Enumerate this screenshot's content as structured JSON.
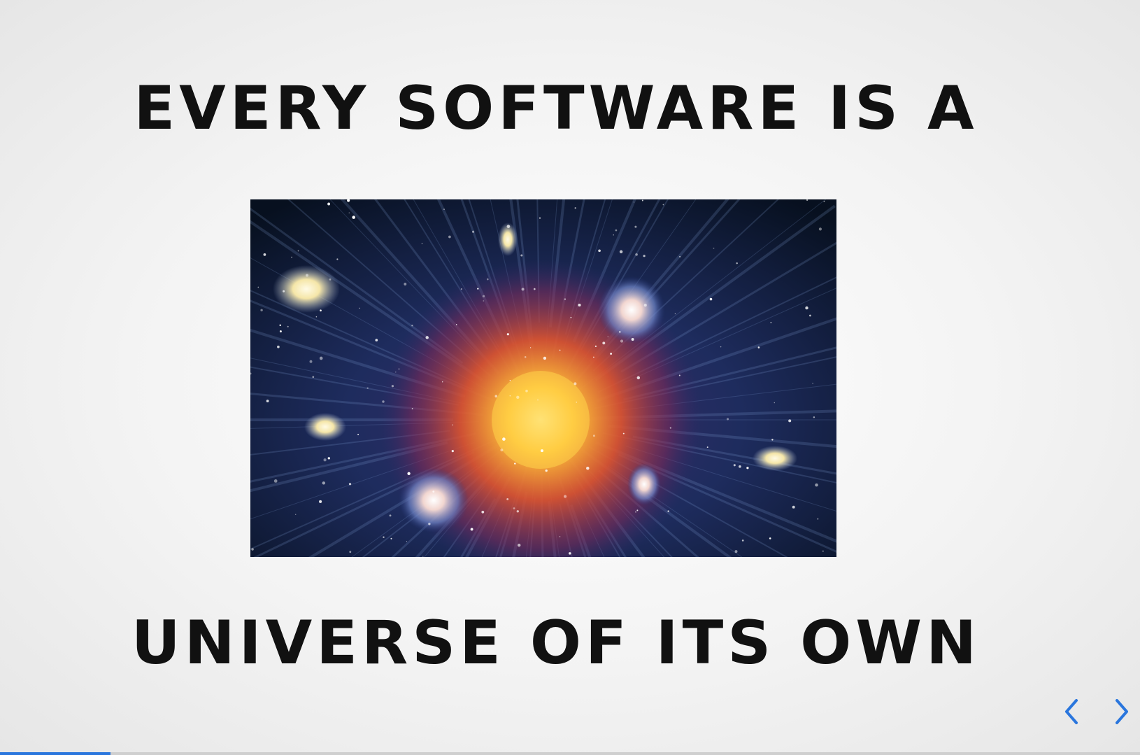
{
  "slide": {
    "title_line1": "EVERY SOFTWARE IS A",
    "title_line2": "UNIVERSE OF ITS OWN",
    "image_icon": "big-bang-galaxies-image"
  },
  "controls": {
    "prev_icon": "chevron-left-icon",
    "next_icon": "chevron-right-icon",
    "accent_color": "#2a76dd"
  },
  "progress": {
    "fraction": 0.097
  }
}
